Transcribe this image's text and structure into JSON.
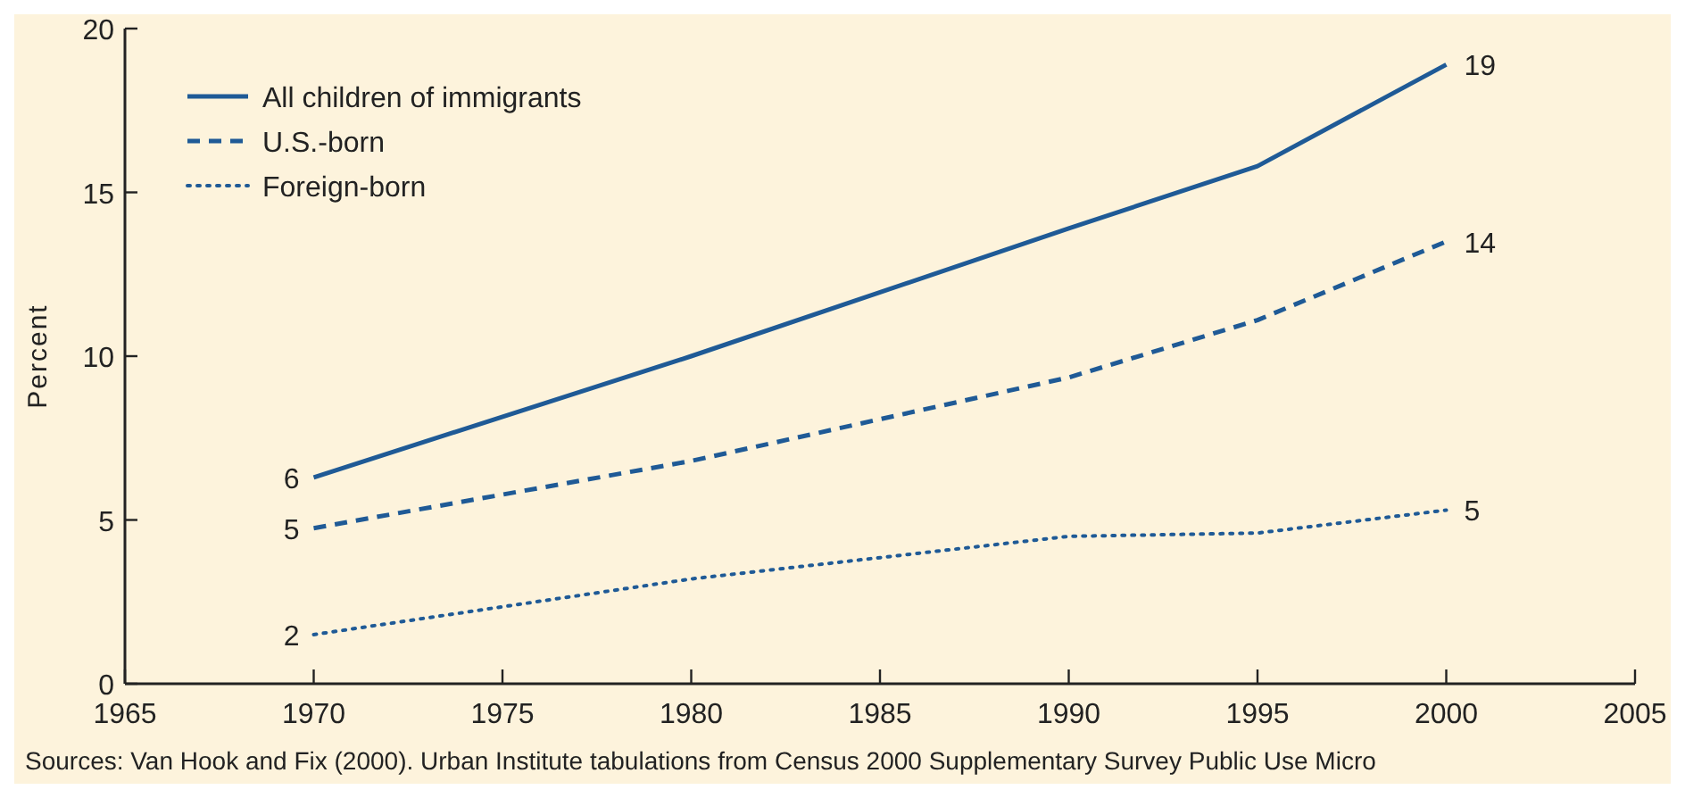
{
  "chart_data": {
    "type": "line",
    "ylabel": "Percent",
    "x": [
      1970,
      1980,
      1990,
      1995,
      2000
    ],
    "xlim": [
      1965,
      2005
    ],
    "xticks": [
      1965,
      1970,
      1975,
      1980,
      1985,
      1990,
      1995,
      2000,
      2005
    ],
    "ylim": [
      0,
      20
    ],
    "yticks": [
      0,
      5,
      10,
      15,
      20
    ],
    "legend": "top left",
    "grid": false,
    "series": [
      {
        "name": "All children of immigrants",
        "color": "#1f5a96",
        "line_style": "solid",
        "values": [
          6.3,
          10.0,
          13.9,
          15.8,
          18.9
        ],
        "value_labels": [
          "6",
          null,
          null,
          null,
          "19"
        ]
      },
      {
        "name": "U.S.-born",
        "color": "#1f5a96",
        "line_style": "dashed",
        "values": [
          4.75,
          6.8,
          9.35,
          11.1,
          13.5
        ],
        "value_labels": [
          "5",
          null,
          null,
          null,
          "14"
        ]
      },
      {
        "name": "Foreign-born",
        "color": "#1f5a96",
        "line_style": "dotted",
        "values": [
          1.5,
          3.2,
          4.5,
          4.6,
          5.3
        ],
        "value_labels": [
          "2",
          null,
          null,
          null,
          "5"
        ]
      }
    ],
    "annotations": [
      "Sources: Van Hook and Fix (2000). Urban Institute tabulations from Census 2000 Supplementary Survey Public Use Micro"
    ]
  }
}
